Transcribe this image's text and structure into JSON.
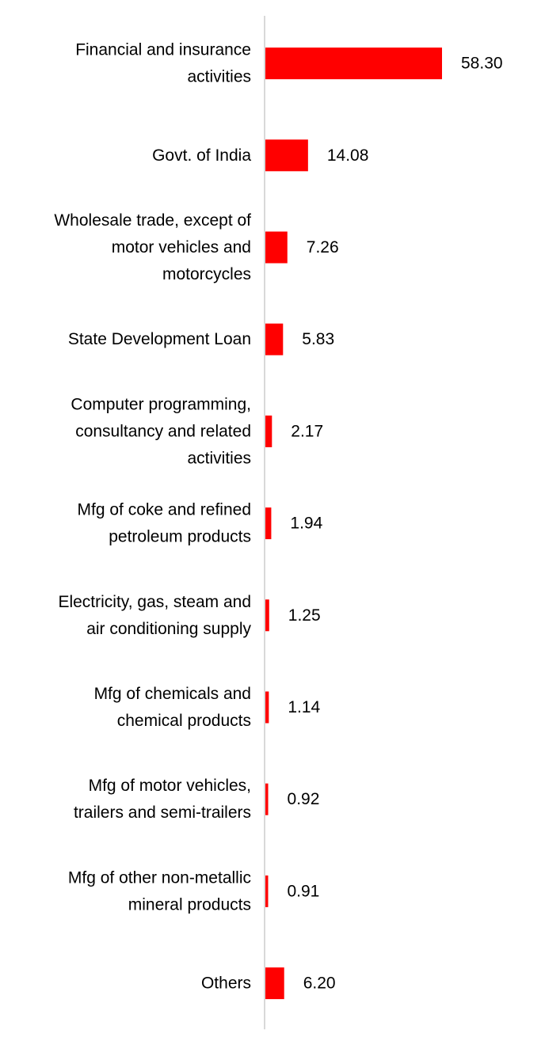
{
  "chart_data": {
    "type": "bar",
    "orientation": "horizontal",
    "categories": [
      [
        "Financial and insurance",
        "activities"
      ],
      [
        "Govt. of India"
      ],
      [
        "Wholesale trade, except of",
        "motor vehicles and",
        "motorcycles"
      ],
      [
        "State Development Loan"
      ],
      [
        "Computer programming,",
        "consultancy and related",
        "activities"
      ],
      [
        "Mfg of coke and refined",
        "petroleum products"
      ],
      [
        "Electricity, gas, steam and",
        "air conditioning supply"
      ],
      [
        "Mfg of chemicals and",
        "chemical products"
      ],
      [
        "Mfg of motor vehicles,",
        "trailers and semi-trailers"
      ],
      [
        "Mfg of other non-metallic",
        "mineral products"
      ],
      [
        "Others"
      ]
    ],
    "values": [
      58.3,
      14.08,
      7.26,
      5.83,
      2.17,
      1.94,
      1.25,
      1.14,
      0.92,
      0.91,
      6.2
    ],
    "value_labels": [
      "58.30",
      "14.08",
      "7.26",
      "5.83",
      "2.17",
      "1.94",
      "1.25",
      "1.14",
      "0.92",
      "0.91",
      "6.20"
    ],
    "xlim": [
      0,
      58.3
    ],
    "grid": false,
    "bar_color": "#ff0000",
    "axis_color": "#d9d9d9",
    "title": "",
    "xlabel": "",
    "ylabel": ""
  }
}
